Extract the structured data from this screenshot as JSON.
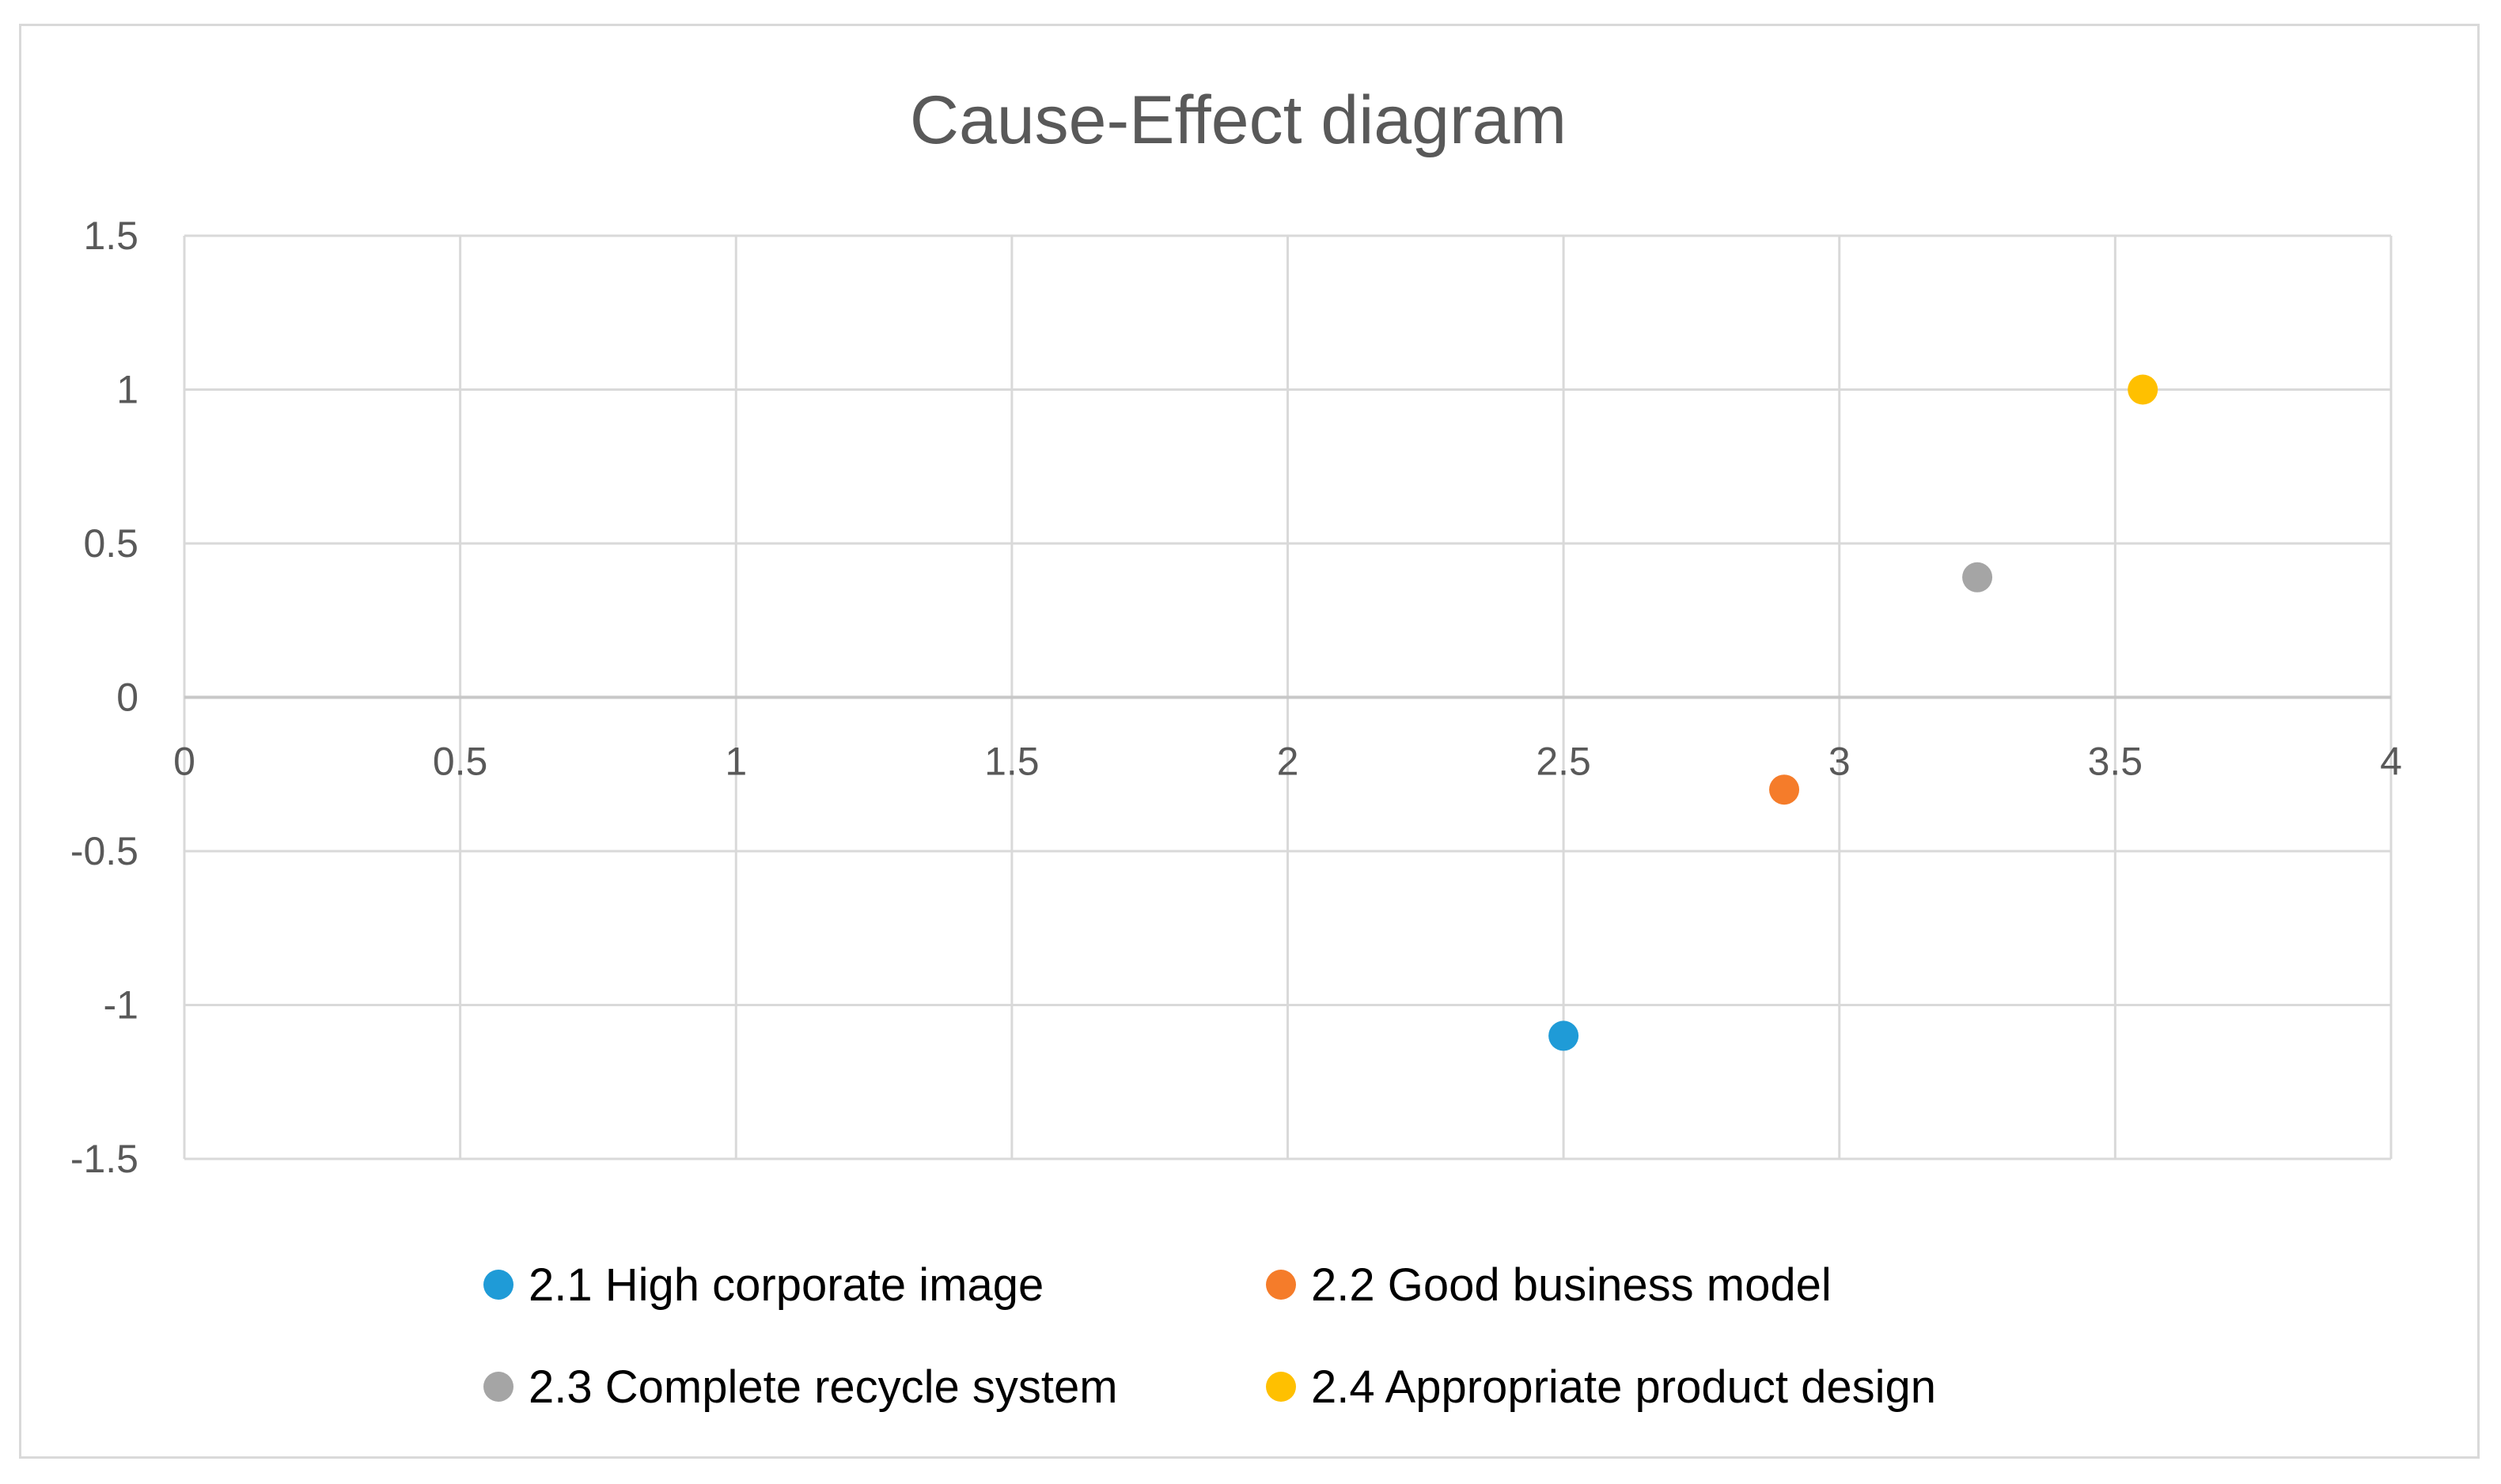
{
  "chart_data": {
    "type": "scatter",
    "title": "Cause-Effect diagram",
    "xlabel": "",
    "ylabel": "",
    "xlim": [
      0,
      4
    ],
    "ylim": [
      -1.5,
      1.5
    ],
    "x_ticks": [
      0,
      0.5,
      1,
      1.5,
      2,
      2.5,
      3,
      3.5,
      4
    ],
    "x_tick_labels": [
      "0",
      "0.5",
      "1",
      "1.5",
      "2",
      "2.5",
      "3",
      "3.5",
      "4"
    ],
    "y_ticks": [
      1.5,
      1,
      0.5,
      0,
      -0.5,
      -1,
      -1.5
    ],
    "y_tick_labels": [
      "1.5",
      "1",
      "0.5",
      "0",
      "-0.5",
      "-1",
      "-1.5"
    ],
    "grid": true,
    "legend_position": "bottom",
    "series": [
      {
        "name": "2.1 High corporate image",
        "color": "#1f9bd7",
        "x": [
          2.5
        ],
        "y": [
          -1.1
        ]
      },
      {
        "name": "2.2 Good business model",
        "color": "#f57c2a",
        "x": [
          2.9
        ],
        "y": [
          -0.3
        ]
      },
      {
        "name": "2.3 Complete recycle system",
        "color": "#a5a5a5",
        "x": [
          3.25
        ],
        "y": [
          0.39
        ]
      },
      {
        "name": "2.4 Appropriate product design",
        "color": "#ffc000",
        "x": [
          3.55
        ],
        "y": [
          1.0
        ]
      }
    ]
  }
}
